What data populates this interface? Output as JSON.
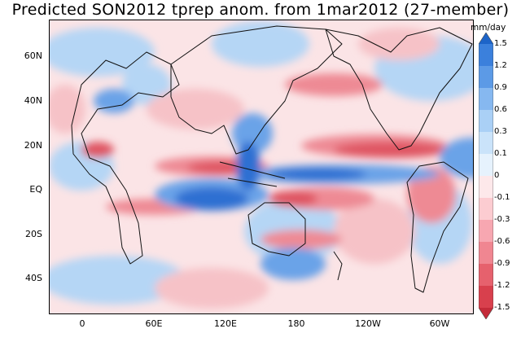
{
  "title": "Predicted SON2012 tprep anom. from 1mar2012 (27-member)",
  "lat_labels": [
    "60N",
    "40N",
    "20N",
    "EQ",
    "20S",
    "40S"
  ],
  "lon_labels": [
    "0",
    "60E",
    "120E",
    "180",
    "120W",
    "60W"
  ],
  "colorbar": {
    "units": "mm/day",
    "ticks": [
      "1.5",
      "1.2",
      "0.9",
      "0.6",
      "0.3",
      "0.1",
      "0",
      "-0.1",
      "-0.3",
      "-0.6",
      "-0.9",
      "-1.2",
      "-1.5"
    ],
    "colors": [
      "#1d64c8",
      "#3b80dc",
      "#5c9ae6",
      "#86b8f0",
      "#aad0f6",
      "#cae3fa",
      "#e6f2fd",
      "#fde8ea",
      "#fcccd1",
      "#f7a7b1",
      "#f08691",
      "#e6616d",
      "#d8404d",
      "#c42b39"
    ]
  },
  "field_colors": {
    "strong_wet": "#2d6fd2",
    "moderate_wet": "#6aa3e8",
    "weak_wet": "#b5d6f5",
    "weak_dry": "#f6c2c7",
    "moderate_dry": "#ee8a94",
    "strong_dry": "#df5562"
  }
}
